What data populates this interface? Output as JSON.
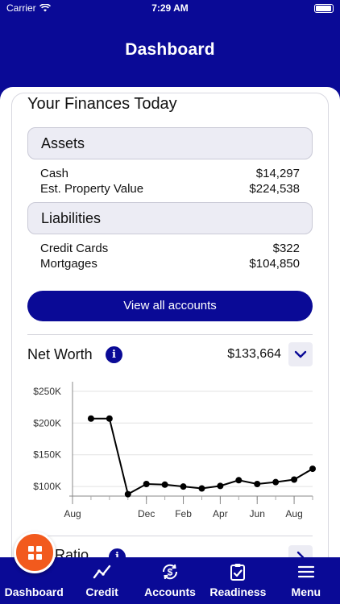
{
  "status_bar": {
    "carrier": "Carrier",
    "time": "7:29 AM"
  },
  "header": {
    "title": "Dashboard"
  },
  "finances": {
    "title": "Your Finances Today",
    "assets": {
      "label": "Assets",
      "rows": [
        {
          "name": "Cash",
          "value": "$14,297"
        },
        {
          "name": "Est. Property Value",
          "value": "$224,538"
        }
      ]
    },
    "liabilities": {
      "label": "Liabilities",
      "rows": [
        {
          "name": "Credit Cards",
          "value": "$322"
        },
        {
          "name": "Mortgages",
          "value": "$104,850"
        }
      ]
    },
    "view_all_label": "View all accounts"
  },
  "net_worth": {
    "title": "Net Worth",
    "info_glyph": "i",
    "value": "$133,664"
  },
  "chart_data": {
    "type": "line",
    "y_tick_labels": [
      "$250K",
      "$200K",
      "$150K",
      "$100K"
    ],
    "y_ticks": [
      250000,
      200000,
      150000,
      100000
    ],
    "x_tick_labels": [
      "Aug",
      "Dec",
      "Feb",
      "Apr",
      "Jun",
      "Aug"
    ],
    "x_tick_positions": [
      0,
      4,
      6,
      8,
      10,
      12
    ],
    "x": [
      1,
      2,
      3,
      4,
      5,
      6,
      7,
      8,
      9,
      10,
      11,
      12,
      13
    ],
    "values": [
      207000,
      207000,
      88000,
      104000,
      103000,
      100000,
      97000,
      101000,
      110000,
      104000,
      107000,
      111000,
      128000
    ],
    "ylim": [
      85000,
      265000
    ],
    "grid": true,
    "line_color": "#000000"
  },
  "next_section": {
    "title": "Ratio"
  },
  "tabs": [
    {
      "label": "Dashboard",
      "icon": "dashboard-icon"
    },
    {
      "label": "Credit",
      "icon": "trend-line-icon"
    },
    {
      "label": "Accounts",
      "icon": "dollar-sync-icon"
    },
    {
      "label": "Readiness",
      "icon": "clipboard-check-icon"
    },
    {
      "label": "Menu",
      "icon": "hamburger-icon"
    }
  ],
  "colors": {
    "brand": "#0a0a96",
    "accent": "#f25a1d",
    "panel": "#ececf4"
  }
}
